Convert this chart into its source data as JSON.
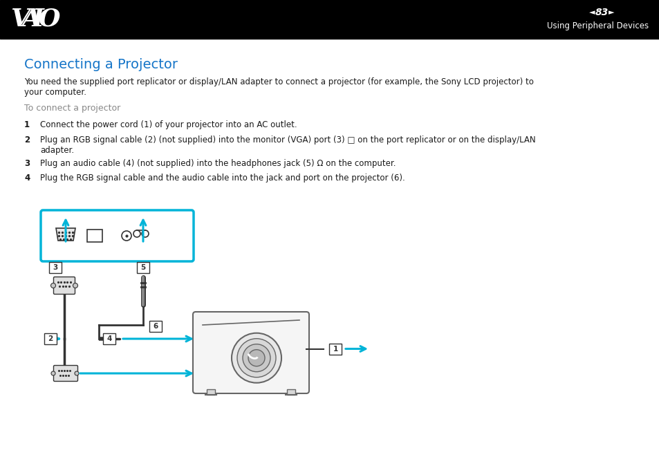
{
  "bg_color": "#ffffff",
  "header_bg": "#000000",
  "header_text_color": "#ffffff",
  "header_page_num": "83",
  "header_subtitle": "Using Peripheral Devices",
  "title": "Connecting a Projector",
  "title_color": "#1575c8",
  "body_text_color": "#1a1a1a",
  "gray_text_color": "#888888",
  "para1_line1": "You need the supplied port replicator or display/LAN adapter to connect a projector (for example, the Sony LCD projector) to",
  "para1_line2": "your computer.",
  "subheading": "To connect a projector",
  "step1_num": "1",
  "step1_text": "Connect the power cord (1) of your projector into an AC outlet.",
  "step2_num": "2",
  "step2_line1": "Plug an RGB signal cable (2) (not supplied) into the monitor (VGA) port (3) □ on the port replicator or on the display/LAN",
  "step2_line2": "adapter.",
  "step3_num": "3",
  "step3_text": "Plug an audio cable (4) (not supplied) into the headphones jack (5) Ω on the computer.",
  "step4_num": "4",
  "step4_text": "Plug the RGB signal cable and the audio cable into the jack and port on the projector (6).",
  "cyan_color": "#00b4d8",
  "dark_color": "#333333",
  "med_color": "#666666",
  "light_color": "#cccccc"
}
